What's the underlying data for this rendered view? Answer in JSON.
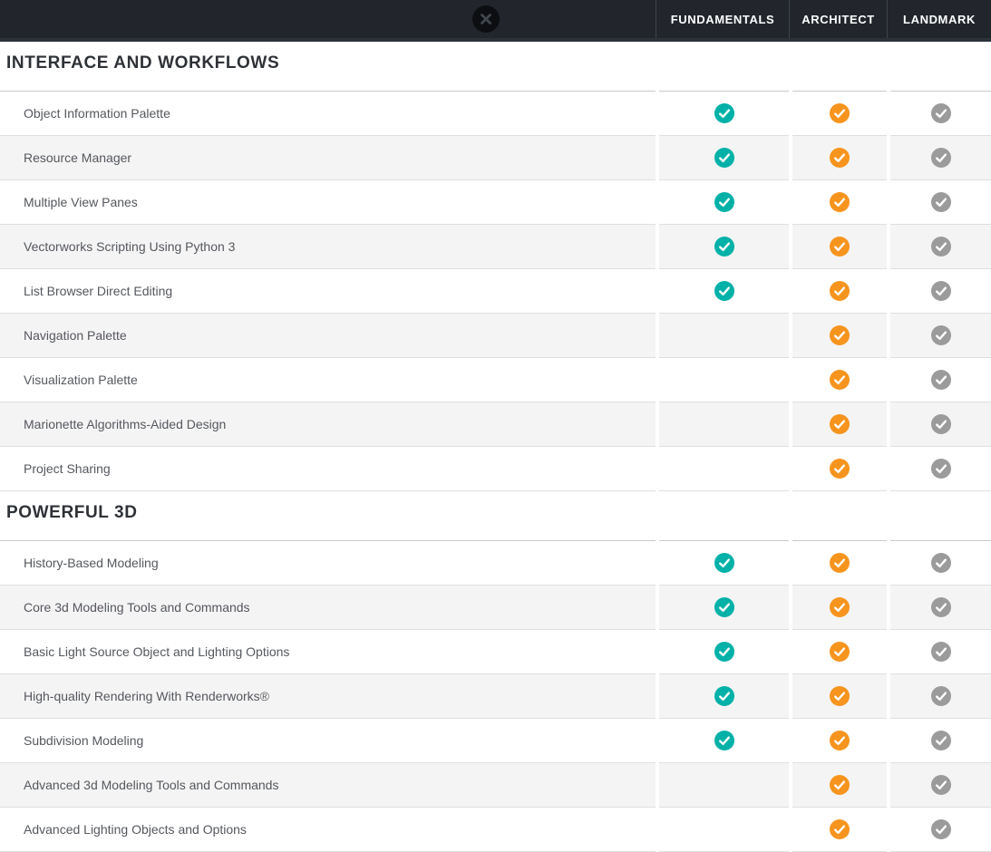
{
  "header": {
    "columns": [
      {
        "key": "fundamentals",
        "label": "FUNDAMENTALS"
      },
      {
        "key": "architect",
        "label": "ARCHITECT"
      },
      {
        "key": "landmark",
        "label": "LANDMARK"
      }
    ]
  },
  "icons": {
    "close_icon": "x-in-circle",
    "included_icon": "check-in-circle"
  },
  "colors": {
    "teal": "#00b1a7",
    "orange": "#f7941e",
    "gray": "#9b9b9b",
    "header_bg": "#22262c",
    "row_alt_bg": "#f4f4f4"
  },
  "sections": [
    {
      "title": "INTERFACE AND WORKFLOWS",
      "rows": [
        {
          "feature": "Object Information Palette",
          "values": [
            "teal",
            "orange",
            "gray"
          ]
        },
        {
          "feature": "Resource Manager",
          "values": [
            "teal",
            "orange",
            "gray"
          ]
        },
        {
          "feature": "Multiple View Panes",
          "values": [
            "teal",
            "orange",
            "gray"
          ]
        },
        {
          "feature": "Vectorworks Scripting Using Python 3",
          "values": [
            "teal",
            "orange",
            "gray"
          ]
        },
        {
          "feature": "List Browser Direct Editing",
          "values": [
            "teal",
            "orange",
            "gray"
          ]
        },
        {
          "feature": "Navigation Palette",
          "values": [
            null,
            "orange",
            "gray"
          ]
        },
        {
          "feature": "Visualization Palette",
          "values": [
            null,
            "orange",
            "gray"
          ]
        },
        {
          "feature": "Marionette Algorithms-Aided Design",
          "values": [
            null,
            "orange",
            "gray"
          ]
        },
        {
          "feature": "Project Sharing",
          "values": [
            null,
            "orange",
            "gray"
          ]
        }
      ]
    },
    {
      "title": "POWERFUL 3D",
      "rows": [
        {
          "feature": "History-Based Modeling",
          "values": [
            "teal",
            "orange",
            "gray"
          ]
        },
        {
          "feature": "Core 3d Modeling Tools and Commands",
          "values": [
            "teal",
            "orange",
            "gray"
          ]
        },
        {
          "feature": "Basic Light Source Object and Lighting Options",
          "values": [
            "teal",
            "orange",
            "gray"
          ]
        },
        {
          "feature": "High-quality Rendering With Renderworks®",
          "values": [
            "teal",
            "orange",
            "gray"
          ]
        },
        {
          "feature": "Subdivision Modeling",
          "values": [
            "teal",
            "orange",
            "gray"
          ]
        },
        {
          "feature": "Advanced 3d Modeling Tools and Commands",
          "values": [
            null,
            "orange",
            "gray"
          ]
        },
        {
          "feature": "Advanced Lighting Objects and Options",
          "values": [
            null,
            "orange",
            "gray"
          ]
        }
      ]
    }
  ]
}
